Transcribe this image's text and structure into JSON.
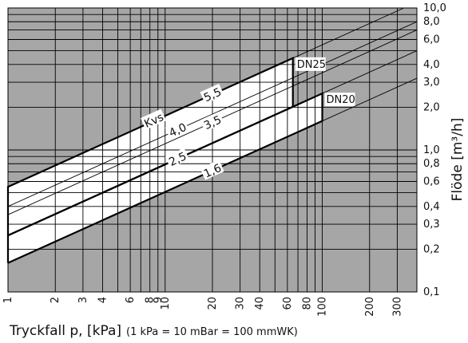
{
  "chart_data": {
    "type": "line",
    "xlabel": "Tryckfall p, [kPa]",
    "xlabel_note": "(1 kPa = 10 mBar = 100 mmWK)",
    "ylabel": "Flöde [m³/h]",
    "xscale": "log",
    "yscale": "log",
    "xlim": [
      1,
      400
    ],
    "ylim": [
      0.1,
      10
    ],
    "x_ticks": [
      {
        "value": 1,
        "label": "1"
      },
      {
        "value": 2,
        "label": "2"
      },
      {
        "value": 3,
        "label": "3"
      },
      {
        "value": 4,
        "label": "4"
      },
      {
        "value": 6,
        "label": "6"
      },
      {
        "value": 8,
        "label": "8"
      },
      {
        "value": 9,
        "label": "9"
      },
      {
        "value": 10,
        "label": "10"
      },
      {
        "value": 20,
        "label": "20"
      },
      {
        "value": 30,
        "label": "30"
      },
      {
        "value": 40,
        "label": "40"
      },
      {
        "value": 60,
        "label": "60"
      },
      {
        "value": 80,
        "label": "80"
      },
      {
        "value": 100,
        "label": "100"
      },
      {
        "value": 200,
        "label": "200"
      },
      {
        "value": 300,
        "label": "300"
      }
    ],
    "y_ticks": [
      {
        "value": 10,
        "label": "10,0"
      },
      {
        "value": 8,
        "label": "8,0"
      },
      {
        "value": 6,
        "label": "6,0"
      },
      {
        "value": 4,
        "label": "4,0"
      },
      {
        "value": 3,
        "label": "3,0"
      },
      {
        "value": 2,
        "label": "2,0"
      },
      {
        "value": 1,
        "label": "1,0"
      },
      {
        "value": 0.8,
        "label": "0,8"
      },
      {
        "value": 0.6,
        "label": "0,6"
      },
      {
        "value": 0.4,
        "label": "0,4"
      },
      {
        "value": 0.3,
        "label": "0,3"
      },
      {
        "value": 0.2,
        "label": "0,2"
      },
      {
        "value": 0.1,
        "label": "0,1"
      }
    ],
    "kvs_title": "Kvs",
    "series": [
      {
        "name": "5,5",
        "kvs": 5.5,
        "label_x": 20
      },
      {
        "name": "4,0",
        "kvs": 4.0,
        "label_x": 12
      },
      {
        "name": "3,5",
        "kvs": 3.5,
        "label_x": 20
      },
      {
        "name": "2,5",
        "kvs": 2.5,
        "label_x": 12
      },
      {
        "name": "1,6",
        "kvs": 1.6,
        "label_x": 20
      }
    ],
    "regions": [
      {
        "name": "DN25",
        "kvs_upper": 5.5,
        "kvs_lower": 2.5,
        "x_max": 65
      },
      {
        "name": "DN20",
        "kvs_upper": 2.5,
        "kvs_lower": 1.6,
        "x_max": 100
      }
    ],
    "colors": {
      "background": "#a6a6a6",
      "band": "#ffffff",
      "grid": "#000000",
      "line": "#000000"
    }
  }
}
